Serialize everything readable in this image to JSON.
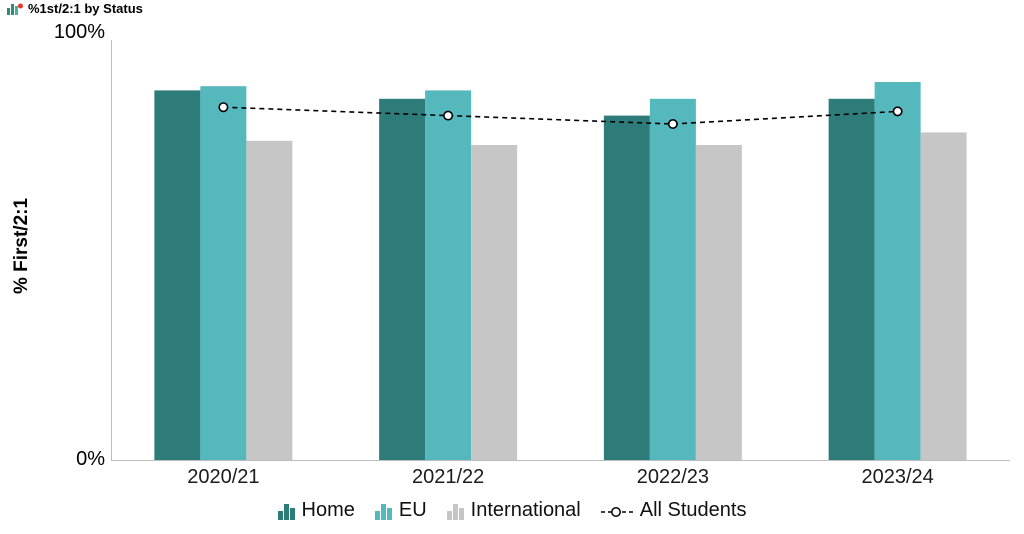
{
  "header": {
    "icon": "worksheet-icon",
    "icon_teal": "#2E8C7A",
    "icon_red": "#E8352E"
  },
  "chart_data": {
    "type": "bar",
    "title": "%1st/2:1 by Status",
    "categories": [
      "2020/21",
      "2021/22",
      "2022/23",
      "2023/24"
    ],
    "series": [
      {
        "name": "Home",
        "type": "bar",
        "color": "#2E7C79",
        "values": [
          88,
          86,
          82,
          86
        ]
      },
      {
        "name": "EU",
        "type": "bar",
        "color": "#54B8BD",
        "values": [
          89,
          88,
          86,
          90
        ]
      },
      {
        "name": "International",
        "type": "bar",
        "color": "#C6C6C6",
        "values": [
          76,
          75,
          75,
          78
        ]
      },
      {
        "name": "All Students",
        "type": "line",
        "color": "#000000",
        "line_style": "dashed",
        "marker": "open-circle",
        "values": [
          84,
          82,
          80,
          83
        ]
      }
    ],
    "xlabel": "",
    "ylabel": "% First/2:1",
    "ylim": [
      0,
      100
    ],
    "yticks": [
      "0%",
      "100%"
    ],
    "grid": false,
    "legend_position": "bottom",
    "axis_color": "#BCBCBC",
    "background": "#FFFFFF"
  }
}
